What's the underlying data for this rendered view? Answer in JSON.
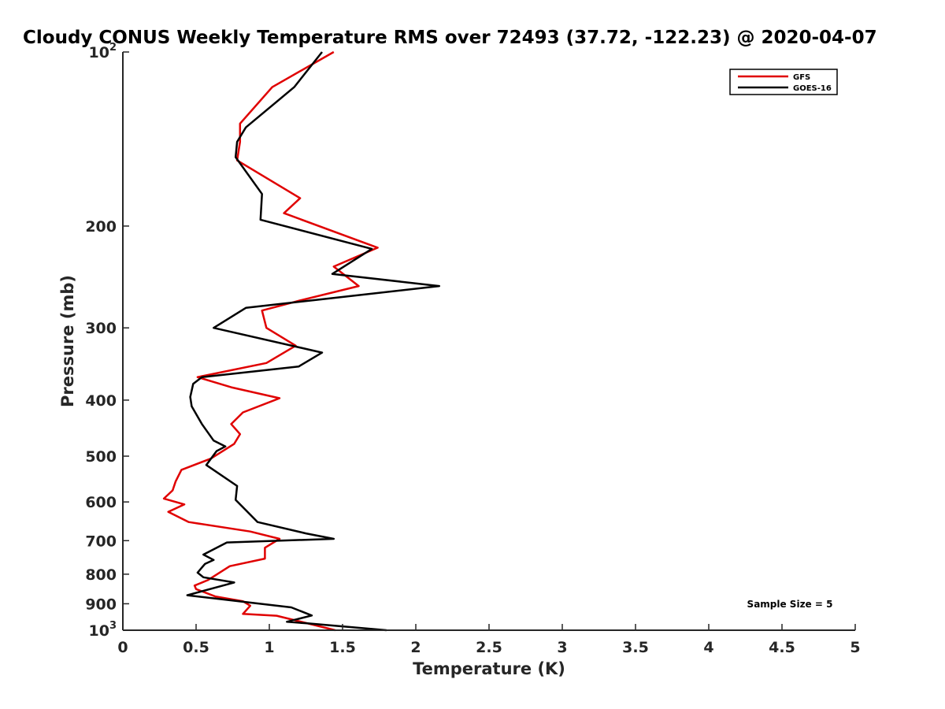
{
  "chart_data": {
    "type": "line",
    "title": "Cloudy CONUS Weekly Temperature RMS over 72493 (37.72, -122.23) @ 2020-04-07",
    "xlabel": "Temperature (K)",
    "ylabel": "Pressure (mb)",
    "xlim": [
      0,
      5
    ],
    "ylim": [
      100,
      1000
    ],
    "y_scale": "log",
    "y_reversed": true,
    "x_ticks": [
      0,
      0.5,
      1,
      1.5,
      2,
      2.5,
      3,
      3.5,
      4,
      4.5,
      5
    ],
    "x_tick_labels": [
      "0",
      "0.5",
      "1",
      "1.5",
      "2",
      "2.5",
      "3",
      "3.5",
      "4",
      "4.5",
      "5"
    ],
    "y_ticks": [
      {
        "value": 100,
        "label": "10",
        "exp": "2"
      },
      {
        "value": 200,
        "label": "200"
      },
      {
        "value": 300,
        "label": "300"
      },
      {
        "value": 400,
        "label": "400"
      },
      {
        "value": 500,
        "label": "500"
      },
      {
        "value": 600,
        "label": "600"
      },
      {
        "value": 700,
        "label": "700"
      },
      {
        "value": 800,
        "label": "800"
      },
      {
        "value": 900,
        "label": "900"
      },
      {
        "value": 1000,
        "label": "10",
        "exp": "3"
      }
    ],
    "legend_position": "top-right",
    "grid": false,
    "annotation": "Sample Size = 5",
    "series": [
      {
        "name": "GFS",
        "color": "#e00000",
        "points": [
          [
            1.44,
            100
          ],
          [
            1.02,
            115
          ],
          [
            0.8,
            133
          ],
          [
            0.8,
            143
          ],
          [
            0.78,
            154
          ],
          [
            1.21,
            179
          ],
          [
            1.1,
            190
          ],
          [
            1.74,
            218
          ],
          [
            1.44,
            235
          ],
          [
            1.61,
            254
          ],
          [
            1.21,
            269
          ],
          [
            0.95,
            280
          ],
          [
            0.98,
            300
          ],
          [
            1.18,
            322
          ],
          [
            0.98,
            345
          ],
          [
            0.51,
            365
          ],
          [
            0.74,
            380
          ],
          [
            1.07,
            397
          ],
          [
            0.82,
            420
          ],
          [
            0.74,
            440
          ],
          [
            0.8,
            458
          ],
          [
            0.76,
            476
          ],
          [
            0.6,
            505
          ],
          [
            0.4,
            528
          ],
          [
            0.36,
            553
          ],
          [
            0.34,
            573
          ],
          [
            0.28,
            592
          ],
          [
            0.42,
            606
          ],
          [
            0.31,
            624
          ],
          [
            0.45,
            650
          ],
          [
            0.87,
            675
          ],
          [
            1.07,
            695
          ],
          [
            0.97,
            720
          ],
          [
            0.97,
            752
          ],
          [
            0.73,
            775
          ],
          [
            0.58,
            819
          ],
          [
            0.49,
            837
          ],
          [
            0.5,
            849
          ],
          [
            0.63,
            874
          ],
          [
            0.82,
            891
          ],
          [
            0.87,
            907
          ],
          [
            0.82,
            937
          ],
          [
            1.05,
            944
          ],
          [
            1.45,
            1000
          ]
        ]
      },
      {
        "name": "GOES-16",
        "color": "#000000",
        "points": [
          [
            1.36,
            100
          ],
          [
            1.17,
            115
          ],
          [
            0.84,
            135
          ],
          [
            0.78,
            143
          ],
          [
            0.77,
            152
          ],
          [
            0.95,
            176
          ],
          [
            0.94,
            195
          ],
          [
            1.7,
            219
          ],
          [
            1.43,
            242
          ],
          [
            2.16,
            254
          ],
          [
            0.84,
            277
          ],
          [
            0.62,
            300
          ],
          [
            1.36,
            331
          ],
          [
            1.2,
            350
          ],
          [
            0.54,
            365
          ],
          [
            0.48,
            375
          ],
          [
            0.46,
            395
          ],
          [
            0.47,
            410
          ],
          [
            0.54,
            440
          ],
          [
            0.62,
            470
          ],
          [
            0.7,
            481
          ],
          [
            0.64,
            490
          ],
          [
            0.57,
            518
          ],
          [
            0.78,
            563
          ],
          [
            0.77,
            595
          ],
          [
            0.84,
            620
          ],
          [
            0.92,
            650
          ],
          [
            1.25,
            680
          ],
          [
            1.44,
            695
          ],
          [
            0.71,
            705
          ],
          [
            0.55,
            740
          ],
          [
            0.62,
            756
          ],
          [
            0.56,
            768
          ],
          [
            0.51,
            795
          ],
          [
            0.55,
            810
          ],
          [
            0.76,
            827
          ],
          [
            0.44,
            870
          ],
          [
            1.15,
            913
          ],
          [
            1.29,
            943
          ],
          [
            1.12,
            967
          ],
          [
            1.26,
            973
          ],
          [
            1.8,
            1000
          ]
        ]
      }
    ]
  }
}
